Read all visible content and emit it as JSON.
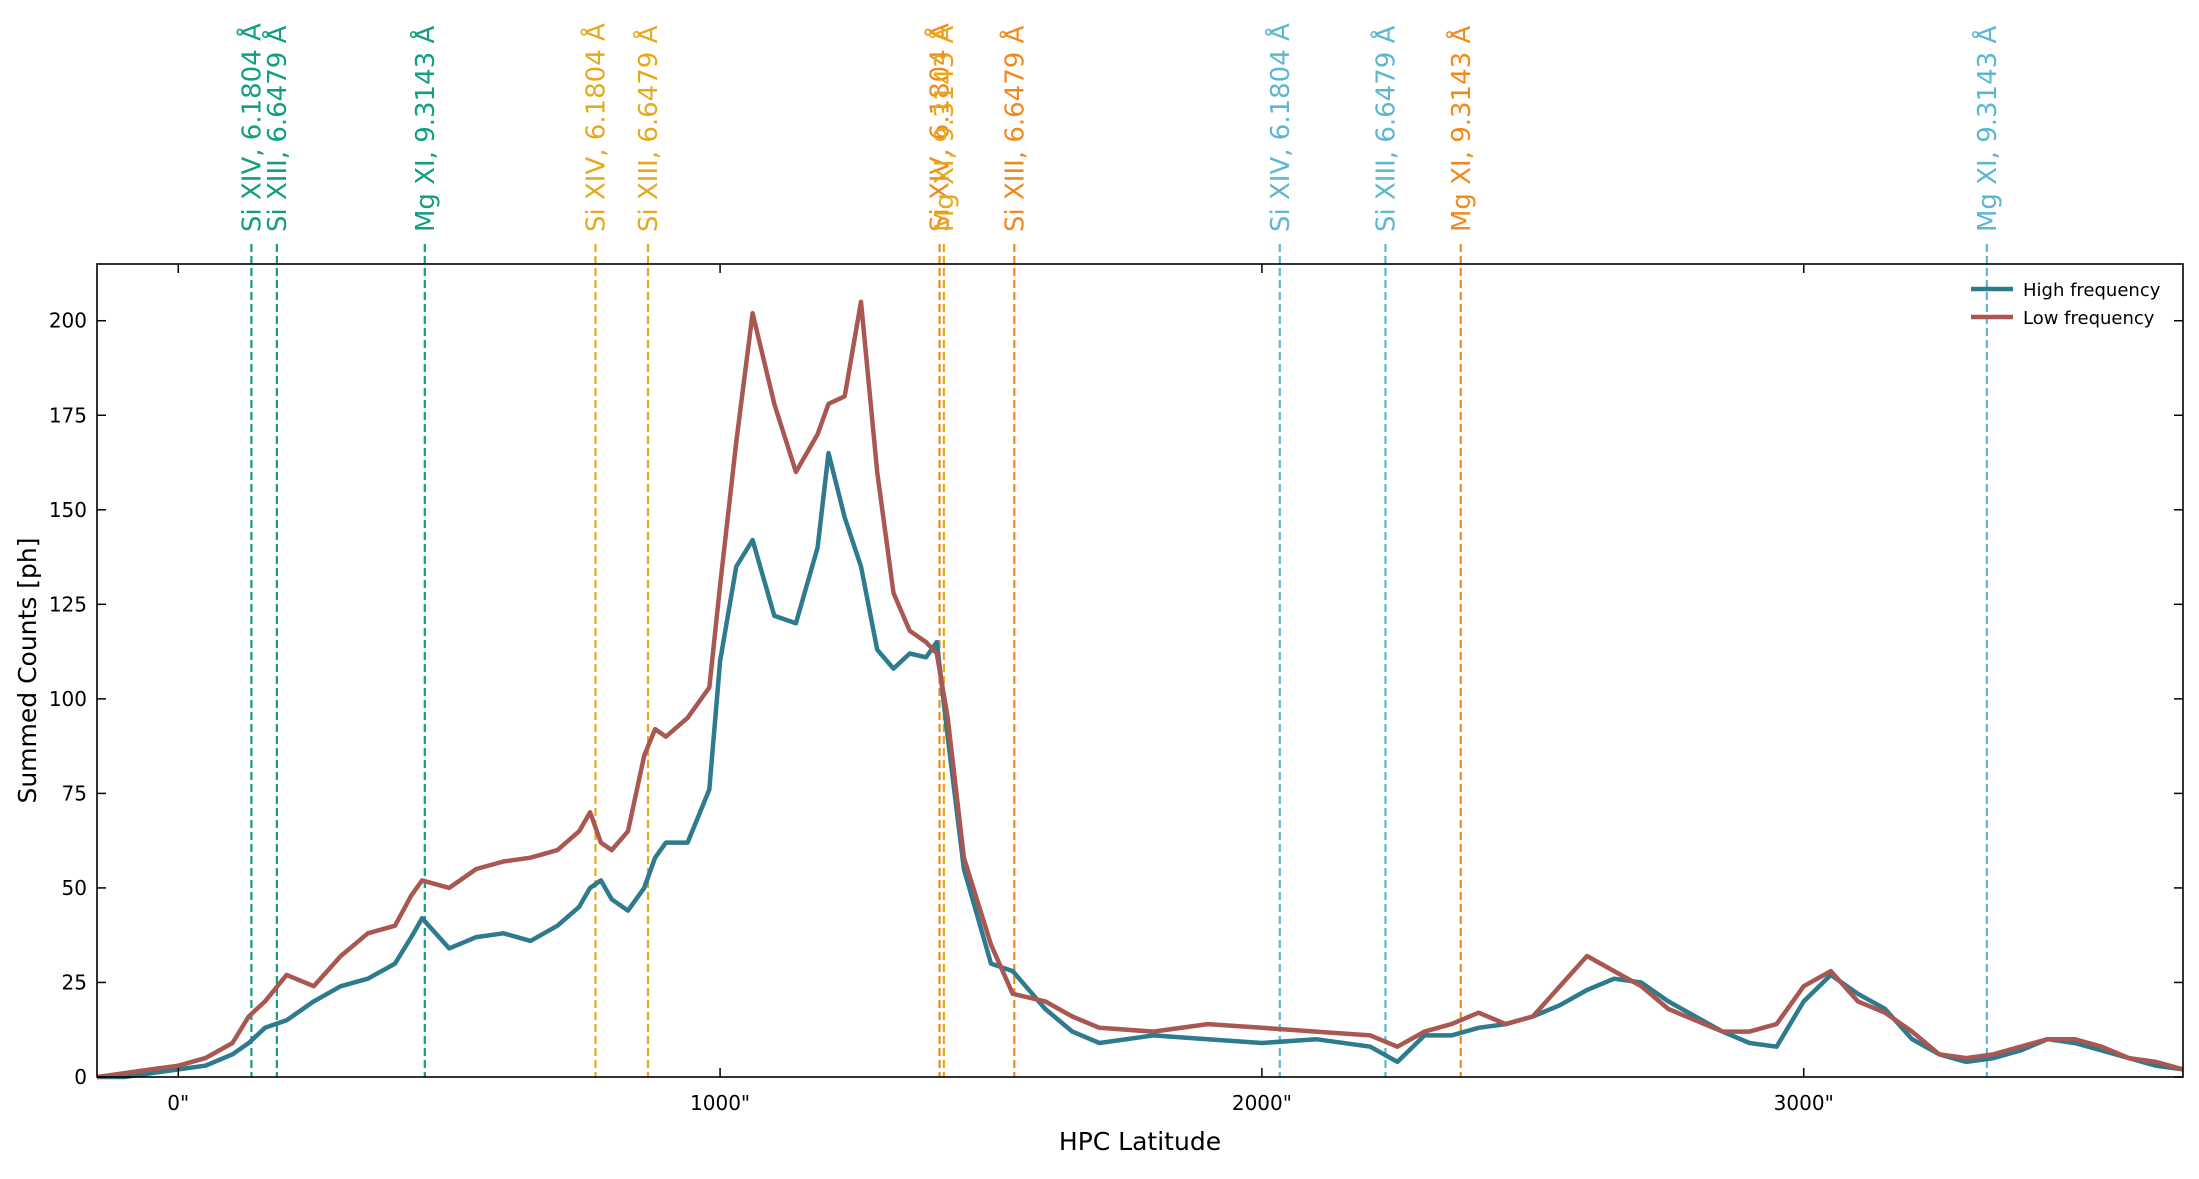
{
  "chart_data": {
    "type": "line",
    "title": "",
    "xlabel": "HPC Latitude",
    "ylabel": "Summed Counts [ph]",
    "xlim": [
      -150,
      3700
    ],
    "ylim": [
      0,
      215
    ],
    "x_ticks": [
      {
        "value": 0,
        "label": "0\""
      },
      {
        "value": 1000,
        "label": "1000\""
      },
      {
        "value": 2000,
        "label": "2000\""
      },
      {
        "value": 3000,
        "label": "3000\""
      }
    ],
    "y_ticks": [
      0,
      25,
      50,
      75,
      100,
      125,
      150,
      175,
      200
    ],
    "grid": false,
    "legend": {
      "placement": "top-right"
    },
    "series": [
      {
        "name": "High frequency",
        "color": "#2e7a8e",
        "x": [
          -150,
          -100,
          -50,
          0,
          50,
          100,
          130,
          160,
          200,
          250,
          300,
          350,
          400,
          430,
          450,
          500,
          550,
          600,
          650,
          700,
          740,
          760,
          780,
          800,
          830,
          860,
          880,
          900,
          940,
          980,
          1000,
          1030,
          1060,
          1100,
          1140,
          1180,
          1200,
          1230,
          1260,
          1290,
          1320,
          1350,
          1380,
          1400,
          1420,
          1450,
          1500,
          1540,
          1600,
          1650,
          1700,
          1800,
          1900,
          2000,
          2100,
          2200,
          2250,
          2300,
          2350,
          2400,
          2450,
          2500,
          2550,
          2600,
          2650,
          2700,
          2750,
          2800,
          2850,
          2900,
          2950,
          3000,
          3050,
          3100,
          3150,
          3200,
          3250,
          3300,
          3350,
          3400,
          3450,
          3500,
          3550,
          3600,
          3650,
          3700
        ],
        "values": [
          0,
          0,
          1,
          2,
          3,
          6,
          9,
          13,
          15,
          20,
          24,
          26,
          30,
          37,
          42,
          34,
          37,
          38,
          36,
          40,
          45,
          50,
          52,
          47,
          44,
          50,
          58,
          62,
          62,
          76,
          110,
          135,
          142,
          122,
          120,
          140,
          165,
          148,
          135,
          113,
          108,
          112,
          111,
          115,
          90,
          55,
          30,
          28,
          18,
          12,
          9,
          11,
          10,
          9,
          10,
          8,
          4,
          11,
          11,
          13,
          14,
          16,
          19,
          23,
          26,
          25,
          20,
          16,
          12,
          9,
          8,
          20,
          27,
          22,
          18,
          10,
          6,
          4,
          5,
          7,
          10,
          9,
          7,
          5,
          3,
          2
        ]
      },
      {
        "name": "Low frequency",
        "color": "#a85751",
        "x": [
          -150,
          -100,
          -50,
          0,
          50,
          100,
          130,
          160,
          200,
          250,
          300,
          350,
          400,
          430,
          450,
          500,
          550,
          600,
          650,
          700,
          740,
          760,
          780,
          800,
          830,
          860,
          880,
          900,
          940,
          980,
          1000,
          1030,
          1060,
          1100,
          1140,
          1180,
          1200,
          1230,
          1260,
          1290,
          1320,
          1350,
          1380,
          1400,
          1420,
          1450,
          1500,
          1540,
          1600,
          1650,
          1700,
          1800,
          1900,
          2000,
          2100,
          2200,
          2250,
          2300,
          2350,
          2400,
          2450,
          2500,
          2550,
          2600,
          2650,
          2700,
          2750,
          2800,
          2850,
          2900,
          2950,
          3000,
          3050,
          3100,
          3150,
          3200,
          3250,
          3300,
          3350,
          3400,
          3450,
          3500,
          3550,
          3600,
          3650,
          3700
        ],
        "values": [
          0,
          1,
          2,
          3,
          5,
          9,
          16,
          20,
          27,
          24,
          32,
          38,
          40,
          48,
          52,
          50,
          55,
          57,
          58,
          60,
          65,
          70,
          62,
          60,
          65,
          85,
          92,
          90,
          95,
          103,
          130,
          168,
          202,
          178,
          160,
          170,
          178,
          180,
          205,
          160,
          128,
          118,
          115,
          112,
          95,
          58,
          35,
          22,
          20,
          16,
          13,
          12,
          14,
          13,
          12,
          11,
          8,
          12,
          14,
          17,
          14,
          16,
          24,
          32,
          28,
          24,
          18,
          15,
          12,
          12,
          14,
          24,
          28,
          20,
          17,
          12,
          6,
          5,
          6,
          8,
          10,
          10,
          8,
          5,
          4,
          2
        ]
      }
    ],
    "reference_lines": [
      {
        "x": 135,
        "label": "Si XIV, 6.1804 Å",
        "color": "#129e83"
      },
      {
        "x": 182,
        "label": "Si XIII, 6.6479 Å",
        "color": "#129e83"
      },
      {
        "x": 455,
        "label": "Mg XI, 9.3143 Å",
        "color": "#129e83"
      },
      {
        "x": 770,
        "label": "Si XIV, 6.1804 Å",
        "color": "#e8a81c"
      },
      {
        "x": 867,
        "label": "Si XIII, 6.6479 Å",
        "color": "#e8a81c"
      },
      {
        "x": 1405,
        "label": "Si XIV, 6.1804 Å",
        "color": "#f08a1c"
      },
      {
        "x": 1413,
        "label": "Mg XI, 9.3143 Å",
        "color": "#e8a81c"
      },
      {
        "x": 1543,
        "label": "Si XIII, 6.6479 Å",
        "color": "#f08a1c"
      },
      {
        "x": 2033,
        "label": "Si XIV, 6.1804 Å",
        "color": "#5bb8d0"
      },
      {
        "x": 2228,
        "label": "Si XIII, 6.6479 Å",
        "color": "#5bb8d0"
      },
      {
        "x": 2367,
        "label": "Mg XI, 9.3143 Å",
        "color": "#f08a1c"
      },
      {
        "x": 3338,
        "label": "Mg XI, 9.3143 Å",
        "color": "#5bb8d0"
      }
    ]
  }
}
